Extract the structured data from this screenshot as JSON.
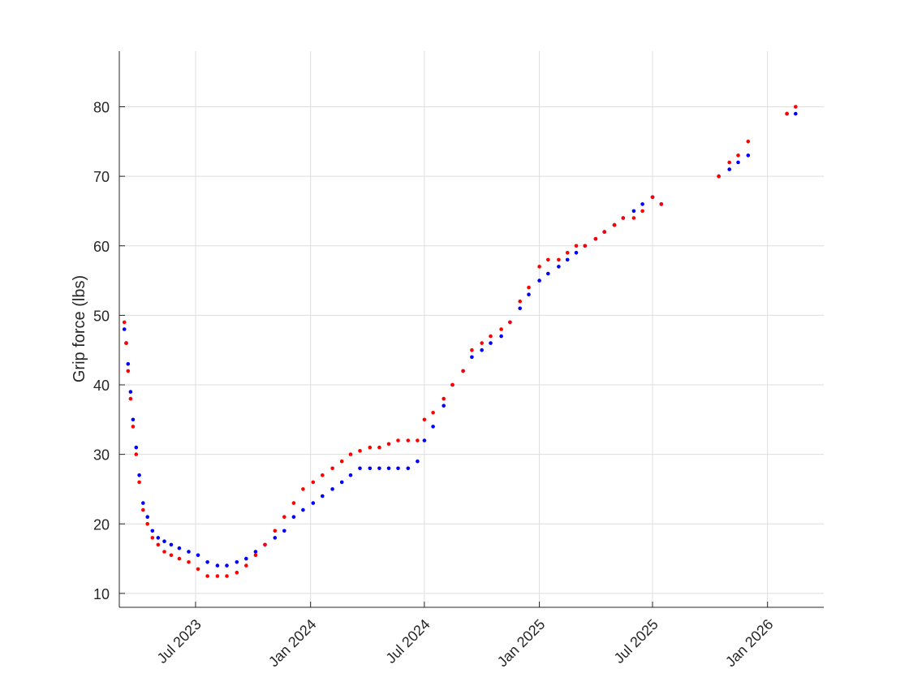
{
  "chart_data": {
    "type": "scatter",
    "title": "",
    "xlabel": "",
    "ylabel": "Grip force (lbs)",
    "x_axis_type": "date",
    "xlim": [
      "2023-03-01",
      "2026-04-01"
    ],
    "ylim": [
      8,
      88
    ],
    "x_ticks": [
      {
        "date": "2023-07-01",
        "label": "Jul 2023"
      },
      {
        "date": "2024-01-01",
        "label": "Jan 2024"
      },
      {
        "date": "2024-07-01",
        "label": "Jul 2024"
      },
      {
        "date": "2025-01-01",
        "label": "Jan 2025"
      },
      {
        "date": "2025-07-01",
        "label": "Jul 2025"
      },
      {
        "date": "2026-01-01",
        "label": "Jan 2026"
      }
    ],
    "y_ticks": [
      10,
      20,
      30,
      40,
      50,
      60,
      70,
      80
    ],
    "grid": true,
    "series": [
      {
        "color": "#0000ff",
        "x": [
          "2023-03-09",
          "2023-03-12",
          "2023-03-15",
          "2023-03-19",
          "2023-03-23",
          "2023-03-28",
          "2023-04-02",
          "2023-04-08",
          "2023-04-15",
          "2023-04-23",
          "2023-05-02",
          "2023-05-12",
          "2023-05-23",
          "2023-06-05",
          "2023-06-20",
          "2023-07-05",
          "2023-07-20",
          "2023-08-05",
          "2023-08-20",
          "2023-09-05",
          "2023-09-20",
          "2023-10-05",
          "2023-10-20",
          "2023-11-05",
          "2023-11-20",
          "2023-12-05",
          "2023-12-20",
          "2024-01-05",
          "2024-01-20",
          "2024-02-05",
          "2024-02-20",
          "2024-03-05",
          "2024-03-20",
          "2024-04-05",
          "2024-04-20",
          "2024-05-05",
          "2024-05-20",
          "2024-06-05",
          "2024-06-20",
          "2024-07-01",
          "2024-07-15",
          "2024-08-01",
          "2024-08-15",
          "2024-09-01",
          "2024-09-15",
          "2024-10-01",
          "2024-10-15",
          "2024-11-01",
          "2024-11-15",
          "2024-12-01",
          "2024-12-15",
          "2025-01-01",
          "2025-01-15",
          "2025-02-01",
          "2025-02-15",
          "2025-03-01",
          "2025-03-15",
          "2025-04-01",
          "2025-04-15",
          "2025-05-01",
          "2025-05-15",
          "2025-06-01",
          "2025-06-15",
          "2025-07-01",
          "2025-07-15",
          "2025-10-15",
          "2025-11-01",
          "2025-11-15",
          "2025-12-01",
          "2026-02-01",
          "2026-02-15"
        ],
        "y": [
          48,
          46,
          43,
          39,
          35,
          31,
          27,
          23,
          21,
          19,
          18,
          17.5,
          17,
          16.5,
          16,
          15.5,
          14.5,
          14,
          14,
          14.5,
          15,
          16,
          17,
          18,
          19,
          21,
          22,
          23,
          24,
          25,
          26,
          27,
          28,
          28,
          28,
          28,
          28,
          28,
          29,
          32,
          34,
          37,
          40,
          42,
          44,
          45,
          46,
          47,
          49,
          51,
          53,
          55,
          56,
          57,
          58,
          59,
          60,
          61,
          62,
          63,
          64,
          65,
          66,
          67,
          66,
          70,
          71,
          72,
          73,
          79,
          79
        ]
      },
      {
        "color": "#ff0000",
        "x": [
          "2023-03-09",
          "2023-03-12",
          "2023-03-15",
          "2023-03-19",
          "2023-03-23",
          "2023-03-28",
          "2023-04-02",
          "2023-04-08",
          "2023-04-15",
          "2023-04-23",
          "2023-05-02",
          "2023-05-12",
          "2023-05-23",
          "2023-06-05",
          "2023-06-20",
          "2023-07-05",
          "2023-07-20",
          "2023-08-05",
          "2023-08-20",
          "2023-09-05",
          "2023-09-20",
          "2023-10-05",
          "2023-10-20",
          "2023-11-05",
          "2023-11-20",
          "2023-12-05",
          "2023-12-20",
          "2024-01-05",
          "2024-01-20",
          "2024-02-05",
          "2024-02-20",
          "2024-03-05",
          "2024-03-20",
          "2024-04-05",
          "2024-04-20",
          "2024-05-05",
          "2024-05-20",
          "2024-06-05",
          "2024-06-20",
          "2024-07-01",
          "2024-07-15",
          "2024-08-01",
          "2024-08-15",
          "2024-09-01",
          "2024-09-15",
          "2024-10-01",
          "2024-10-15",
          "2024-11-01",
          "2024-11-15",
          "2024-12-01",
          "2024-12-15",
          "2025-01-01",
          "2025-01-15",
          "2025-02-01",
          "2025-02-15",
          "2025-03-01",
          "2025-03-15",
          "2025-04-01",
          "2025-04-15",
          "2025-05-01",
          "2025-05-15",
          "2025-06-01",
          "2025-06-15",
          "2025-07-01",
          "2025-07-15",
          "2025-10-15",
          "2025-11-01",
          "2025-11-15",
          "2025-12-01",
          "2026-02-01",
          "2026-02-15"
        ],
        "y": [
          49,
          46,
          42,
          38,
          34,
          30,
          26,
          22,
          20,
          18,
          17,
          16,
          15.5,
          15,
          14.5,
          13.5,
          12.5,
          12.5,
          12.5,
          13,
          14,
          15.5,
          17,
          19,
          21,
          23,
          25,
          26,
          27,
          28,
          29,
          30,
          30.5,
          31,
          31,
          31.5,
          32,
          32,
          32,
          35,
          36,
          38,
          40,
          42,
          45,
          46,
          47,
          48,
          49,
          52,
          54,
          57,
          58,
          58,
          59,
          60,
          60,
          61,
          62,
          63,
          64,
          64,
          65,
          67,
          66,
          70,
          72,
          73,
          75,
          79,
          80
        ]
      }
    ]
  }
}
